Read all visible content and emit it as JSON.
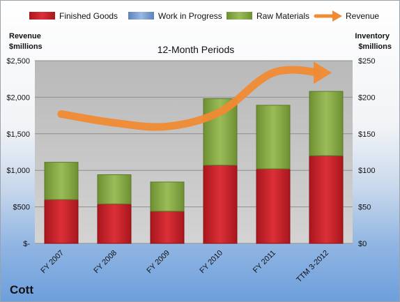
{
  "company_name": "Cott",
  "chart_data": {
    "type": "bar",
    "subtype": "stacked bar with line overlay",
    "title": "12-Month Periods",
    "categories": [
      "FY 2007",
      "FY 2008",
      "FY 2009",
      "FY 2010",
      "FY 2011",
      "TTM 3-2012"
    ],
    "series": [
      {
        "name": "Finished Goods",
        "axis": "right",
        "color": "#cc2229",
        "values": [
          60,
          54,
          44,
          107,
          102,
          120
        ]
      },
      {
        "name": "Work in Progress",
        "axis": "right",
        "color": "#7aa0d4",
        "values": [
          0,
          0,
          0,
          0,
          0,
          0
        ]
      },
      {
        "name": "Raw Materials",
        "axis": "right",
        "color": "#8fb04a",
        "values": [
          51,
          40,
          40,
          91,
          87,
          88
        ]
      },
      {
        "name": "Revenue",
        "axis": "left",
        "type": "line",
        "color": "#f08a33",
        "values": [
          1770,
          1650,
          1600,
          1800,
          2335,
          2335
        ]
      }
    ],
    "y_left": {
      "label": "Revenue\n$millions",
      "range": [
        0,
        2500
      ],
      "ticks": [
        0,
        500,
        1000,
        1500,
        2000,
        2500
      ],
      "tick_labels": [
        "$-",
        "$500",
        "$1,000",
        "$1,500",
        "$2,000",
        "$2,500"
      ]
    },
    "y_right": {
      "label": "Inventory\n$millions",
      "range": [
        0,
        250
      ],
      "ticks": [
        0,
        50,
        100,
        150,
        200,
        250
      ],
      "tick_labels": [
        "$0",
        "$50",
        "$100",
        "$150",
        "$200",
        "$250"
      ]
    },
    "legend_position": "top",
    "grid": true
  }
}
